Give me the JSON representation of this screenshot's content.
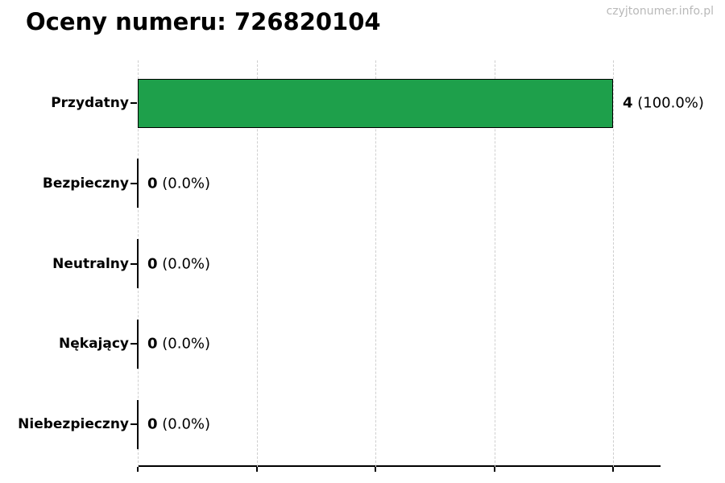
{
  "page": {
    "watermark": "czyjtonumer.info.pl"
  },
  "chart_data": {
    "type": "bar",
    "orientation": "horizontal",
    "title": "Oceny numeru: 726820104",
    "categories": [
      "Przydatny",
      "Bezpieczny",
      "Neutralny",
      "Nękający",
      "Niebezpieczny"
    ],
    "values": [
      4,
      0,
      0,
      0,
      0
    ],
    "value_labels": [
      {
        "count": "4",
        "pct": "(100.0%)"
      },
      {
        "count": "0",
        "pct": "(0.0%)"
      },
      {
        "count": "0",
        "pct": "(0.0%)"
      },
      {
        "count": "0",
        "pct": "(0.0%)"
      },
      {
        "count": "0",
        "pct": "(0.0%)"
      }
    ],
    "xlim": [
      0,
      4.4
    ],
    "x_ticks": [
      0,
      1,
      2,
      3,
      4
    ],
    "grid": true,
    "legend_position": "none",
    "colors": {
      "bar_fill": "#1ea04b",
      "bar_border": "#000000",
      "gridline": "#cfcfcf",
      "axis": "#000000",
      "text": "#000000",
      "watermark": "#b9b9b9"
    }
  }
}
